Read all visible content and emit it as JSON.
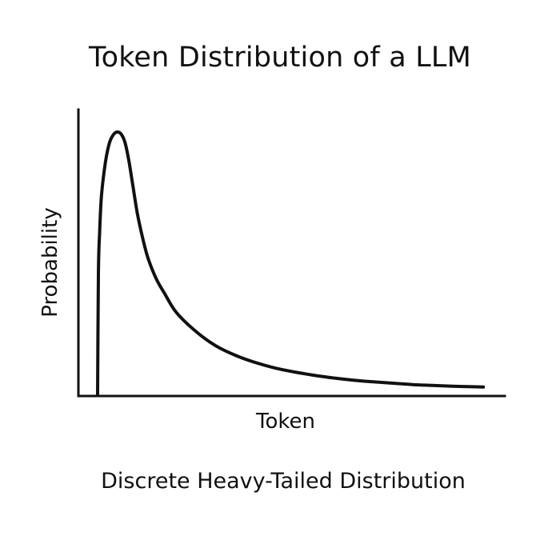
{
  "chart_data": {
    "type": "line",
    "title": "Token Distribution of a LLM",
    "subtitle": "Discrete Heavy-Tailed Distribution",
    "xlabel": "Token",
    "ylabel": "Probability",
    "x_ticks": [],
    "y_ticks": [],
    "grid": false,
    "legend": "none",
    "xlim": [
      0,
      100
    ],
    "ylim": [
      0,
      1
    ],
    "series": [
      {
        "x": [
          0,
          0.2,
          0.5,
          1,
          2,
          3,
          4,
          5,
          6,
          7,
          8,
          9,
          10,
          11,
          12,
          13,
          15,
          17,
          20,
          25,
          30,
          35,
          40,
          45,
          50,
          55,
          60,
          65,
          70,
          75,
          80,
          85,
          90,
          95,
          98
        ],
        "y": [
          0,
          0.44,
          0.59,
          0.73,
          0.85,
          0.92,
          0.95,
          0.96,
          0.952,
          0.92,
          0.85,
          0.76,
          0.67,
          0.6,
          0.54,
          0.49,
          0.42,
          0.37,
          0.3,
          0.23,
          0.178,
          0.143,
          0.117,
          0.097,
          0.082,
          0.07,
          0.06,
          0.052,
          0.046,
          0.041,
          0.036,
          0.033,
          0.03,
          0.028,
          0.027
        ],
        "color": "#111111"
      }
    ]
  }
}
